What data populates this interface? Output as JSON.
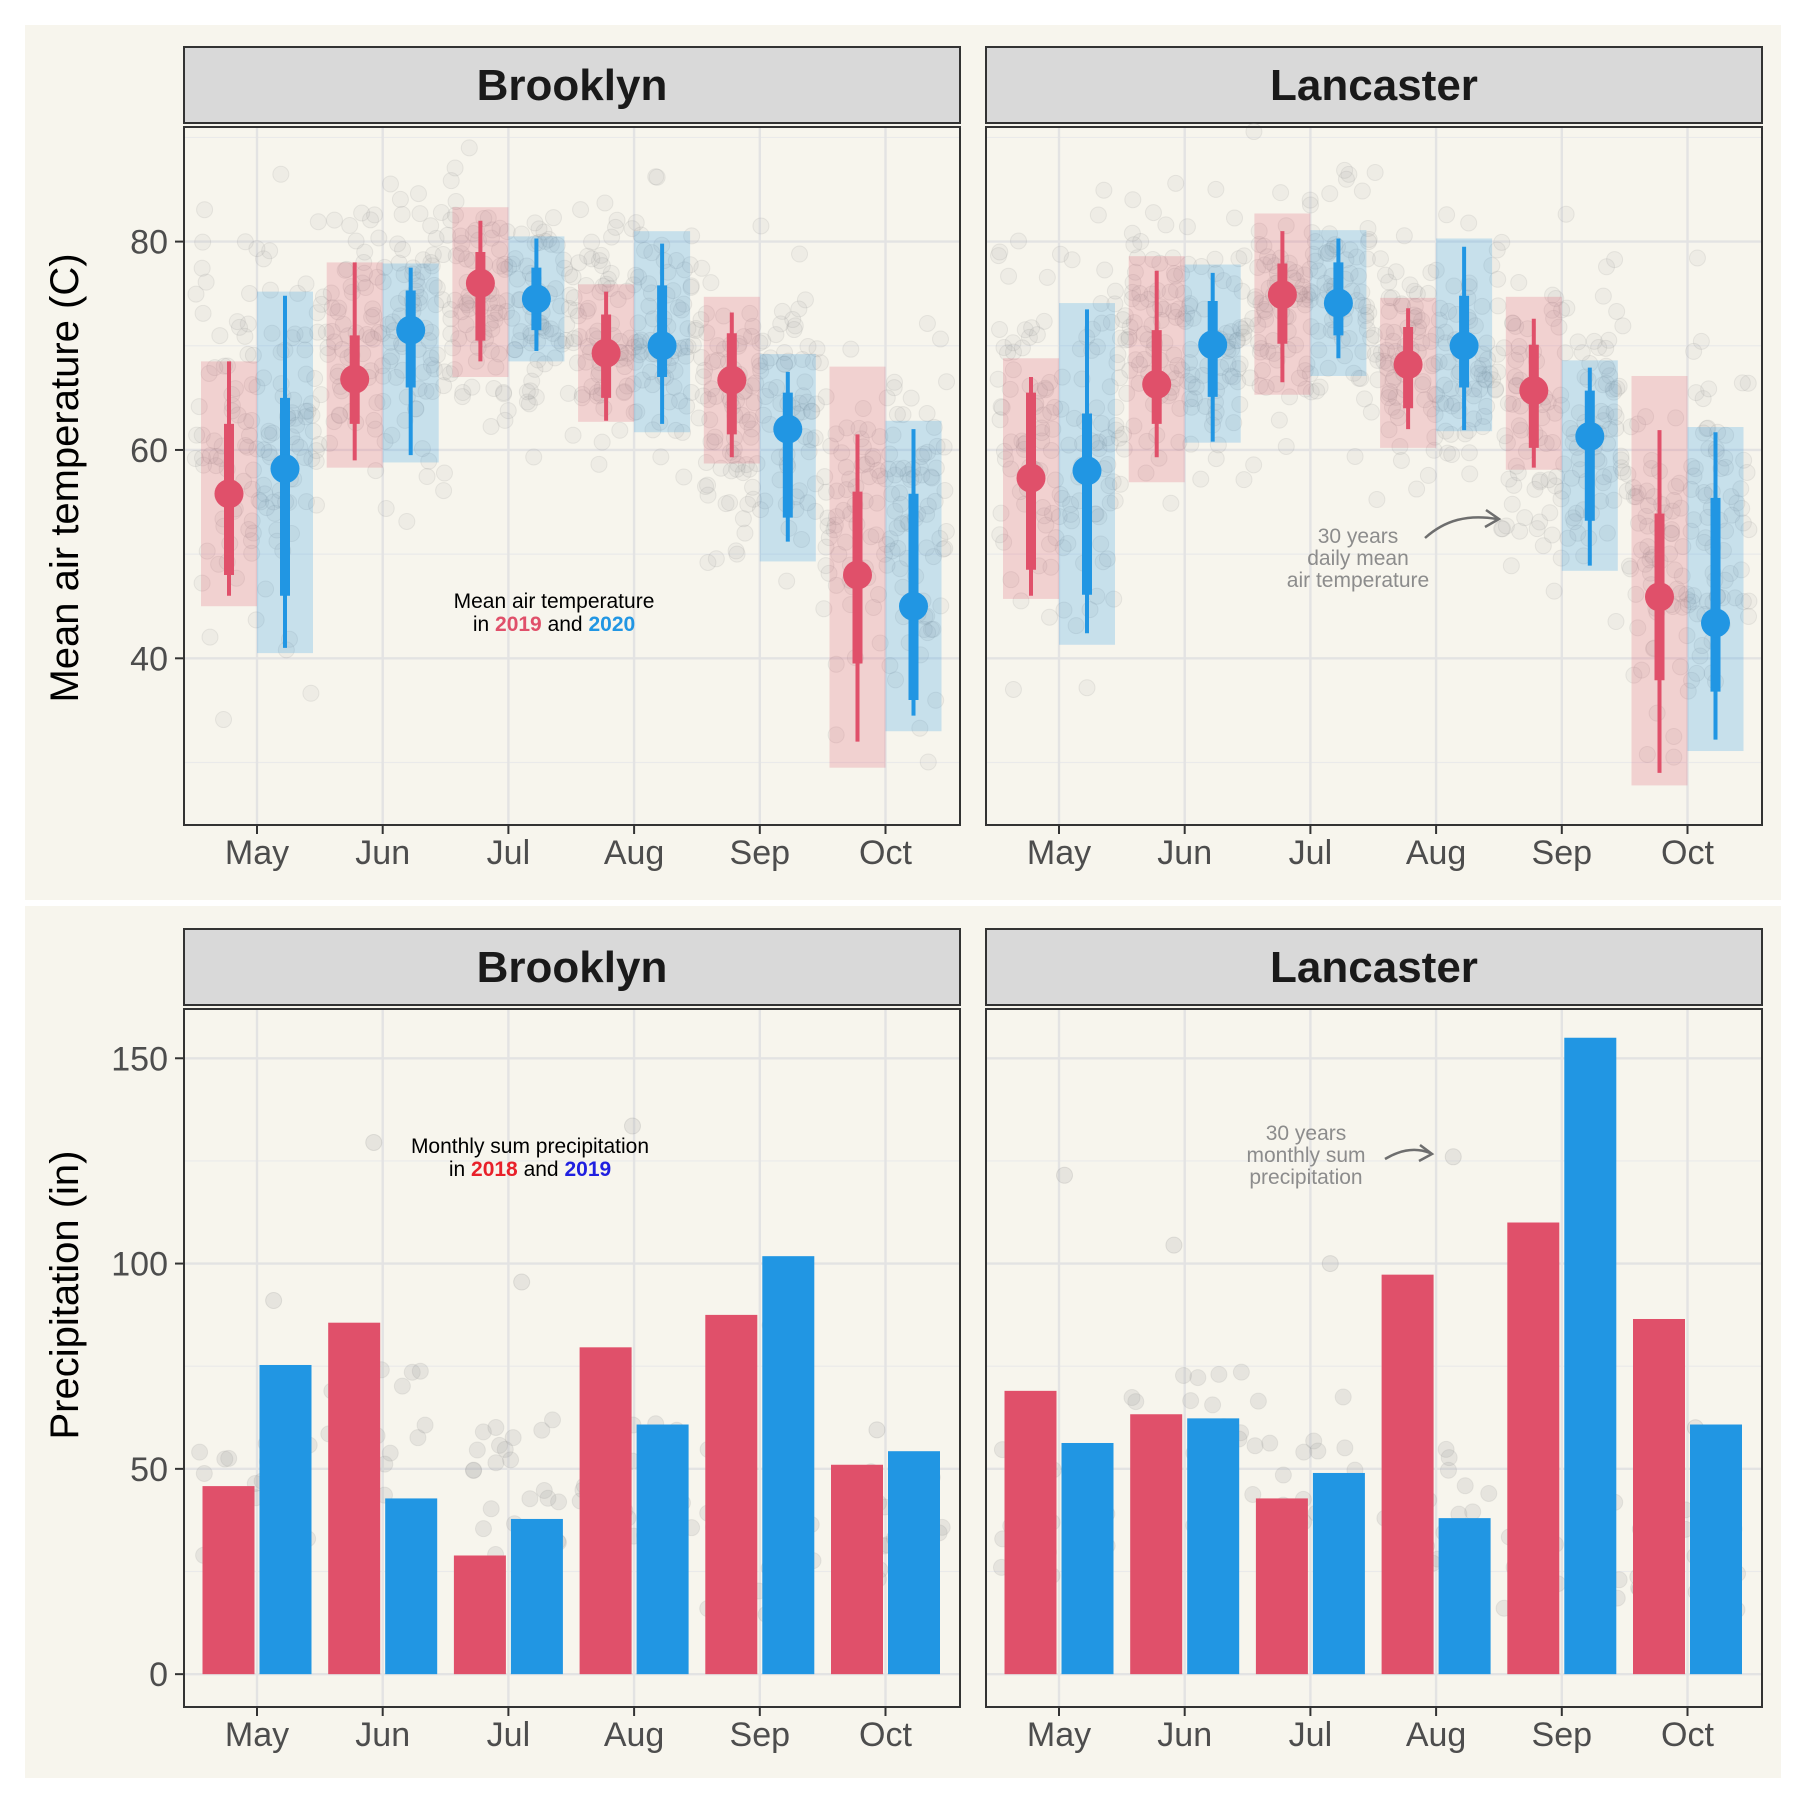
{
  "chart_data": [
    {
      "type": "interval",
      "measure": "temperature",
      "ylabel": "Mean air temperature (C)",
      "ylim": [
        24,
        91
      ],
      "yticks": [
        40,
        60,
        80
      ],
      "categories": [
        "May",
        "Jun",
        "Jul",
        "Aug",
        "Sep",
        "Oct"
      ],
      "legend": {
        "line1": "Mean air temperature",
        "prefix": "in",
        "year_a": "2019",
        "joiner": "and",
        "year_b": "2020"
      },
      "annotation": {
        "lines": [
          "30 years",
          "daily mean",
          "air temperature"
        ]
      },
      "panels": [
        {
          "facet": "Brooklyn",
          "series": [
            {
              "year": "2019",
              "color": "#E0506A",
              "points": [
                {
                  "month": "May",
                  "mean": 55.8,
                  "box": [
                    45,
                    68.5
                  ],
                  "thick": [
                    48,
                    62.5
                  ],
                  "thin": [
                    46,
                    68.5
                  ]
                },
                {
                  "month": "Jun",
                  "mean": 66.8,
                  "box": [
                    58.3,
                    78
                  ],
                  "thick": [
                    62.5,
                    71
                  ],
                  "thin": [
                    59,
                    78
                  ]
                },
                {
                  "month": "Jul",
                  "mean": 76,
                  "box": [
                    67,
                    83.3
                  ],
                  "thick": [
                    70.5,
                    79
                  ],
                  "thin": [
                    68.5,
                    82
                  ]
                },
                {
                  "month": "Aug",
                  "mean": 69.3,
                  "box": [
                    62.7,
                    75.9
                  ],
                  "thick": [
                    65,
                    73
                  ],
                  "thin": [
                    62.8,
                    75.2
                  ]
                },
                {
                  "month": "Sep",
                  "mean": 66.7,
                  "box": [
                    58.7,
                    74.7
                  ],
                  "thick": [
                    61.5,
                    71.2
                  ],
                  "thin": [
                    59.3,
                    73.2
                  ]
                },
                {
                  "month": "Oct",
                  "mean": 48,
                  "box": [
                    29.5,
                    68
                  ],
                  "thick": [
                    39.5,
                    56
                  ],
                  "thin": [
                    32,
                    61.5
                  ]
                }
              ]
            },
            {
              "year": "2020",
              "color": "#2196E3",
              "points": [
                {
                  "month": "May",
                  "mean": 58.2,
                  "box": [
                    40.5,
                    75.2
                  ],
                  "thick": [
                    46,
                    65
                  ],
                  "thin": [
                    41,
                    74.8
                  ]
                },
                {
                  "month": "Jun",
                  "mean": 71.5,
                  "box": [
                    58.8,
                    77.9
                  ],
                  "thick": [
                    66,
                    75.3
                  ],
                  "thin": [
                    59.5,
                    77.5
                  ]
                },
                {
                  "month": "Jul",
                  "mean": 74.5,
                  "box": [
                    68.5,
                    80.5
                  ],
                  "thick": [
                    71.5,
                    77.5
                  ],
                  "thin": [
                    69.5,
                    80.3
                  ]
                },
                {
                  "month": "Aug",
                  "mean": 70,
                  "box": [
                    61.7,
                    81
                  ],
                  "thick": [
                    67,
                    75.8
                  ],
                  "thin": [
                    62.5,
                    79.8
                  ]
                },
                {
                  "month": "Sep",
                  "mean": 62,
                  "box": [
                    49.3,
                    69.2
                  ],
                  "thick": [
                    53.5,
                    65.5
                  ],
                  "thin": [
                    51.2,
                    67.5
                  ]
                },
                {
                  "month": "Oct",
                  "mean": 45,
                  "box": [
                    33,
                    62.8
                  ],
                  "thick": [
                    36,
                    55.8
                  ],
                  "thin": [
                    34.5,
                    62
                  ]
                }
              ]
            }
          ],
          "background_points": [
            {
              "month": "May",
              "center": 61,
              "spread": 9
            },
            {
              "month": "Jun",
              "center": 71,
              "spread": 6.5
            },
            {
              "month": "Jul",
              "center": 74,
              "spread": 5.5
            },
            {
              "month": "Aug",
              "center": 71,
              "spread": 5.5
            },
            {
              "month": "Sep",
              "center": 64,
              "spread": 7
            },
            {
              "month": "Oct",
              "center": 55,
              "spread": 7.5
            }
          ]
        },
        {
          "facet": "Lancaster",
          "series": [
            {
              "year": "2019",
              "color": "#E0506A",
              "points": [
                {
                  "month": "May",
                  "mean": 57.3,
                  "box": [
                    45.7,
                    68.8
                  ],
                  "thick": [
                    48.5,
                    65.5
                  ],
                  "thin": [
                    46,
                    67
                  ]
                },
                {
                  "month": "Jun",
                  "mean": 66.3,
                  "box": [
                    56.9,
                    78.6
                  ],
                  "thick": [
                    62.5,
                    71.5
                  ],
                  "thin": [
                    59.3,
                    77.2
                  ]
                },
                {
                  "month": "Jul",
                  "mean": 74.9,
                  "box": [
                    65.3,
                    82.7
                  ],
                  "thick": [
                    70.2,
                    77.9
                  ],
                  "thin": [
                    66.5,
                    81
                  ]
                },
                {
                  "month": "Aug",
                  "mean": 68.2,
                  "box": [
                    60.2,
                    74.6
                  ],
                  "thick": [
                    64,
                    71.8
                  ],
                  "thin": [
                    62,
                    73.6
                  ]
                },
                {
                  "month": "Sep",
                  "mean": 65.7,
                  "box": [
                    58.1,
                    74.7
                  ],
                  "thick": [
                    60.2,
                    70.1
                  ],
                  "thin": [
                    58.3,
                    72.6
                  ]
                },
                {
                  "month": "Oct",
                  "mean": 45.9,
                  "box": [
                    27.8,
                    67.1
                  ],
                  "thick": [
                    37.9,
                    53.9
                  ],
                  "thin": [
                    29,
                    61.9
                  ]
                }
              ]
            },
            {
              "year": "2020",
              "color": "#2196E3",
              "points": [
                {
                  "month": "May",
                  "mean": 58,
                  "box": [
                    41.3,
                    74.1
                  ],
                  "thick": [
                    46.1,
                    63.5
                  ],
                  "thin": [
                    42.4,
                    73.5
                  ]
                },
                {
                  "month": "Jun",
                  "mean": 70.1,
                  "box": [
                    60.7,
                    77.8
                  ],
                  "thick": [
                    65.1,
                    74.3
                  ],
                  "thin": [
                    60.8,
                    77
                  ]
                },
                {
                  "month": "Jul",
                  "mean": 74.1,
                  "box": [
                    67.1,
                    81.1
                  ],
                  "thick": [
                    71,
                    78
                  ],
                  "thin": [
                    68.8,
                    80.3
                  ]
                },
                {
                  "month": "Aug",
                  "mean": 70,
                  "box": [
                    61.8,
                    80.3
                  ],
                  "thick": [
                    66,
                    74.8
                  ],
                  "thin": [
                    61.9,
                    79.5
                  ]
                },
                {
                  "month": "Sep",
                  "mean": 61.3,
                  "box": [
                    48.4,
                    68.6
                  ],
                  "thick": [
                    53.2,
                    65.7
                  ],
                  "thin": [
                    48.9,
                    67.9
                  ]
                },
                {
                  "month": "Oct",
                  "mean": 43.4,
                  "box": [
                    31.1,
                    62.2
                  ],
                  "thick": [
                    36.8,
                    55.4
                  ],
                  "thin": [
                    32.2,
                    61.7
                  ]
                }
              ]
            }
          ],
          "background_points": [
            {
              "month": "May",
              "center": 62,
              "spread": 9
            },
            {
              "month": "Jun",
              "center": 70,
              "spread": 6.5
            },
            {
              "month": "Jul",
              "center": 74,
              "spread": 5.5
            },
            {
              "month": "Aug",
              "center": 69,
              "spread": 5.5
            },
            {
              "month": "Sep",
              "center": 62,
              "spread": 7
            },
            {
              "month": "Oct",
              "center": 52,
              "spread": 7.5
            }
          ]
        }
      ]
    },
    {
      "type": "bar",
      "measure": "precipitation",
      "ylabel": "Precipitation (in)",
      "ylim": [
        -8,
        162
      ],
      "yticks": [
        0,
        50,
        100,
        150
      ],
      "categories": [
        "May",
        "Jun",
        "Jul",
        "Aug",
        "Sep",
        "Oct"
      ],
      "legend": {
        "line1": "Monthly sum precipitation",
        "prefix": "in",
        "year_a": "2018",
        "joiner": "and",
        "year_b": "2019"
      },
      "annotation": {
        "lines": [
          "30 years",
          "monthly sum",
          "precipitation"
        ]
      },
      "panels": [
        {
          "facet": "Brooklyn",
          "series": [
            {
              "year": "2018",
              "color": "#E0506A",
              "values": [
                45.8,
                85.6,
                28.9,
                79.6,
                87.5,
                51
              ]
            },
            {
              "year": "2019",
              "color": "#2196E3",
              "values": [
                75.3,
                42.8,
                37.8,
                60.8,
                101.8,
                54.3
              ]
            }
          ],
          "background_points": [
            {
              "month": "May",
              "center": 45,
              "spread": 18,
              "high": 91
            },
            {
              "month": "Jun",
              "center": 55,
              "spread": 20,
              "high": 129.5
            },
            {
              "month": "Jul",
              "center": 45,
              "spread": 17,
              "high": 95.5
            },
            {
              "month": "Aug",
              "center": 45,
              "spread": 17,
              "high": 133.5
            },
            {
              "month": "Sep",
              "center": 35,
              "spread": 22,
              "high": 85
            },
            {
              "month": "Oct",
              "center": 33,
              "spread": 17,
              "high": 59.5
            }
          ]
        },
        {
          "facet": "Lancaster",
          "series": [
            {
              "year": "2018",
              "color": "#E0506A",
              "values": [
                69,
                63.3,
                42.8,
                97.3,
                110,
                86.5
              ]
            },
            {
              "year": "2019",
              "color": "#2196E3",
              "values": [
                56.3,
                62.3,
                49,
                38,
                155,
                60.8
              ]
            }
          ],
          "background_points": [
            {
              "month": "May",
              "center": 40,
              "spread": 18,
              "high": 121.5
            },
            {
              "month": "Jun",
              "center": 55,
              "spread": 20,
              "high": 104.5
            },
            {
              "month": "Jul",
              "center": 50,
              "spread": 18,
              "high": 100
            },
            {
              "month": "Aug",
              "center": 45,
              "spread": 18,
              "high": 126
            },
            {
              "month": "Sep",
              "center": 30,
              "spread": 18,
              "high": 70
            },
            {
              "month": "Oct",
              "center": 30,
              "spread": 17,
              "high": 60
            }
          ]
        }
      ]
    }
  ]
}
